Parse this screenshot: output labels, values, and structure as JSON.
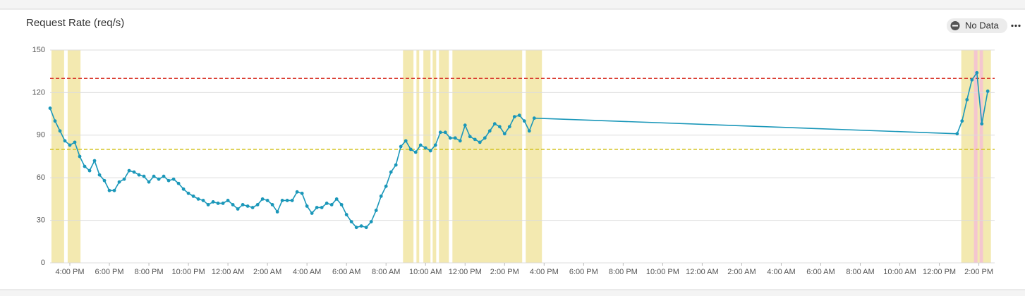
{
  "chart_data": {
    "type": "line",
    "title": "Request Rate (req/s)",
    "status": "No Data",
    "color": "#1a97b9",
    "grid": true,
    "x": [
      -1,
      -0.75,
      -0.5,
      -0.25,
      0,
      0.25,
      0.5,
      0.75,
      1,
      1.25,
      1.5,
      1.75,
      2,
      2.25,
      2.5,
      2.75,
      3,
      3.25,
      3.5,
      3.75,
      4,
      4.25,
      4.5,
      4.75,
      5,
      5.25,
      5.5,
      5.75,
      6,
      6.25,
      6.5,
      6.75,
      7,
      7.25,
      7.5,
      7.75,
      8,
      8.25,
      8.5,
      8.75,
      9,
      9.25,
      9.5,
      9.75,
      10,
      10.25,
      10.5,
      10.75,
      11,
      11.25,
      11.5,
      11.75,
      12,
      12.25,
      12.5,
      12.75,
      13,
      13.25,
      13.5,
      13.75,
      14,
      14.25,
      14.5,
      14.75,
      15,
      15.25,
      15.5,
      15.75,
      16,
      16.25,
      16.5,
      16.75,
      17,
      17.25,
      17.5,
      17.75,
      18,
      18.25,
      18.5,
      18.75,
      19,
      19.25,
      19.5,
      19.75,
      20,
      20.25,
      20.5,
      20.75,
      21,
      21.25,
      21.5,
      21.75,
      22,
      22.25,
      22.5,
      22.75,
      23,
      23.25,
      23.5,
      44.9,
      45.15,
      45.4,
      45.65,
      45.9,
      46.15,
      46.45
    ],
    "values": [
      109,
      100,
      93,
      86,
      83,
      85,
      75,
      68,
      65,
      72,
      62,
      58,
      51,
      51,
      57,
      59,
      65,
      64,
      62,
      61,
      57,
      61,
      59,
      61,
      58,
      59,
      56,
      52,
      49,
      47,
      45,
      44,
      41,
      43,
      42,
      42,
      44,
      41,
      38,
      41,
      40,
      39,
      41,
      45,
      44,
      41,
      36,
      44,
      44,
      44,
      50,
      49,
      40,
      35,
      39,
      39,
      42,
      41,
      45,
      41,
      34,
      29,
      25,
      26,
      25,
      29,
      37,
      47,
      54,
      64,
      69,
      82,
      86,
      80,
      78,
      83,
      81,
      79,
      83,
      92,
      92,
      88,
      88,
      86,
      97,
      89,
      87,
      85,
      88,
      93,
      98,
      96,
      91,
      96,
      103,
      104,
      100,
      93,
      102,
      91,
      100,
      115,
      129,
      134,
      98,
      121
    ],
    "xlim": [
      -1,
      46.8
    ],
    "ylim": [
      0,
      150
    ],
    "yticks": [
      0,
      30,
      60,
      90,
      120,
      150
    ],
    "xticks": [
      {
        "value": 0,
        "label": "4:00 PM"
      },
      {
        "value": 2,
        "label": "6:00 PM"
      },
      {
        "value": 4,
        "label": "8:00 PM"
      },
      {
        "value": 6,
        "label": "10:00 PM"
      },
      {
        "value": 8,
        "label": "12:00 AM"
      },
      {
        "value": 10,
        "label": "2:00 AM"
      },
      {
        "value": 12,
        "label": "4:00 AM"
      },
      {
        "value": 14,
        "label": "6:00 AM"
      },
      {
        "value": 16,
        "label": "8:00 AM"
      },
      {
        "value": 18,
        "label": "10:00 AM"
      },
      {
        "value": 20,
        "label": "12:00 PM"
      },
      {
        "value": 22,
        "label": "2:00 PM"
      },
      {
        "value": 24,
        "label": "4:00 PM"
      },
      {
        "value": 26,
        "label": "6:00 PM"
      },
      {
        "value": 28,
        "label": "8:00 PM"
      },
      {
        "value": 30,
        "label": "10:00 PM"
      },
      {
        "value": 32,
        "label": "12:00 AM"
      },
      {
        "value": 34,
        "label": "2:00 AM"
      },
      {
        "value": 36,
        "label": "4:00 AM"
      },
      {
        "value": 38,
        "label": "6:00 AM"
      },
      {
        "value": 40,
        "label": "8:00 AM"
      },
      {
        "value": 42,
        "label": "10:00 AM"
      },
      {
        "value": 44,
        "label": "12:00 PM"
      },
      {
        "value": 46,
        "label": "2:00 PM"
      }
    ],
    "thresholds": [
      {
        "value": 130,
        "color": "#d9372b"
      },
      {
        "value": 80,
        "color": "#d2c21f"
      }
    ],
    "bands": [
      {
        "start": -0.93,
        "end": -0.29,
        "color": "#f3e9b0"
      },
      {
        "start": -0.11,
        "end": 0.54,
        "color": "#f3e9b0"
      },
      {
        "start": 16.86,
        "end": 17.39,
        "color": "#f3e9b0"
      },
      {
        "start": 17.54,
        "end": 17.68,
        "color": "#f3e9b0"
      },
      {
        "start": 17.89,
        "end": 18.25,
        "color": "#f3e9b0"
      },
      {
        "start": 18.36,
        "end": 18.54,
        "color": "#f3e9b0"
      },
      {
        "start": 18.68,
        "end": 19.18,
        "color": "#f3e9b0"
      },
      {
        "start": 19.36,
        "end": 22.89,
        "color": "#f3e9b0"
      },
      {
        "start": 23.07,
        "end": 23.89,
        "color": "#f3e9b0"
      },
      {
        "start": 45.11,
        "end": 46.61,
        "color": "#f3e9b0"
      },
      {
        "start": 45.75,
        "end": 45.93,
        "color": "#f4c6cf"
      },
      {
        "start": 46.04,
        "end": 46.21,
        "color": "#f4c6cf"
      }
    ]
  }
}
